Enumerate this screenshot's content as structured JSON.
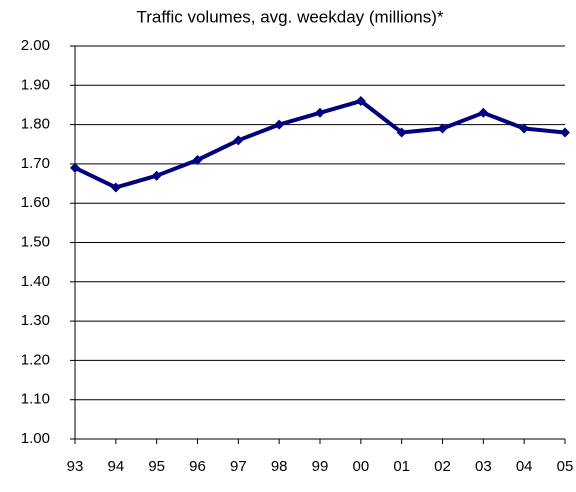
{
  "chart_data": {
    "type": "line",
    "title": "Traffic volumes, avg. weekday (millions)*",
    "categories": [
      "93",
      "94",
      "95",
      "96",
      "97",
      "98",
      "99",
      "00",
      "01",
      "02",
      "03",
      "04",
      "05"
    ],
    "series": [
      {
        "name": "Traffic volumes",
        "color": "#000080",
        "values": [
          1.69,
          1.64,
          1.67,
          1.71,
          1.76,
          1.8,
          1.83,
          1.86,
          1.78,
          1.79,
          1.83,
          1.79,
          1.78
        ]
      }
    ],
    "ylim": [
      1.0,
      2.0
    ],
    "yticks": [
      {
        "value": 1.0,
        "label": "1.00"
      },
      {
        "value": 1.1,
        "label": "1.10"
      },
      {
        "value": 1.2,
        "label": "1.20"
      },
      {
        "value": 1.3,
        "label": "1.30"
      },
      {
        "value": 1.4,
        "label": "1.40"
      },
      {
        "value": 1.5,
        "label": "1.50"
      },
      {
        "value": 1.6,
        "label": "1.60"
      },
      {
        "value": 1.7,
        "label": "1.70"
      },
      {
        "value": 1.8,
        "label": "1.80"
      },
      {
        "value": 1.9,
        "label": "1.90"
      },
      {
        "value": 2.0,
        "label": "2.00"
      }
    ],
    "grid": true
  }
}
